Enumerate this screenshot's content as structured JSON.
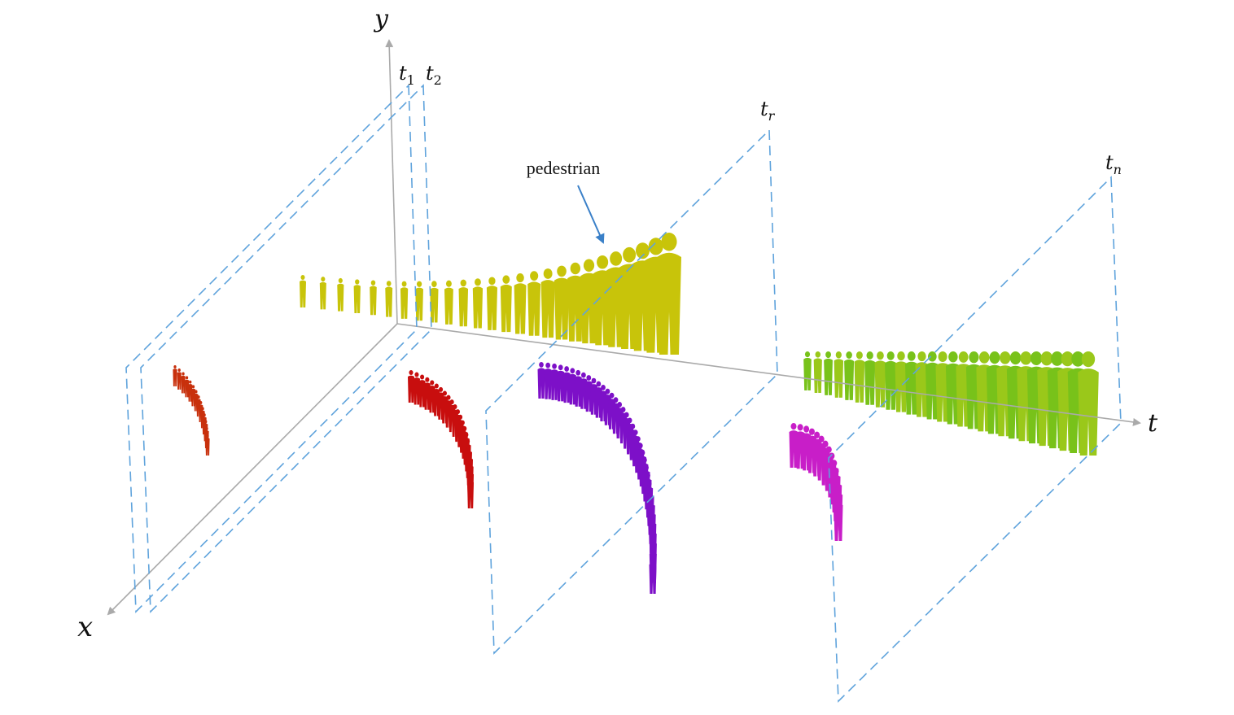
{
  "axes": {
    "y": "y",
    "x": "x",
    "t": "t"
  },
  "planes": [
    {
      "label": "t",
      "subscript": "1"
    },
    {
      "label": "t",
      "subscript": "2"
    },
    {
      "label": "t",
      "subscript": "r"
    },
    {
      "label": "t",
      "subscript": "n"
    }
  ],
  "annotation": "pedestrian"
}
